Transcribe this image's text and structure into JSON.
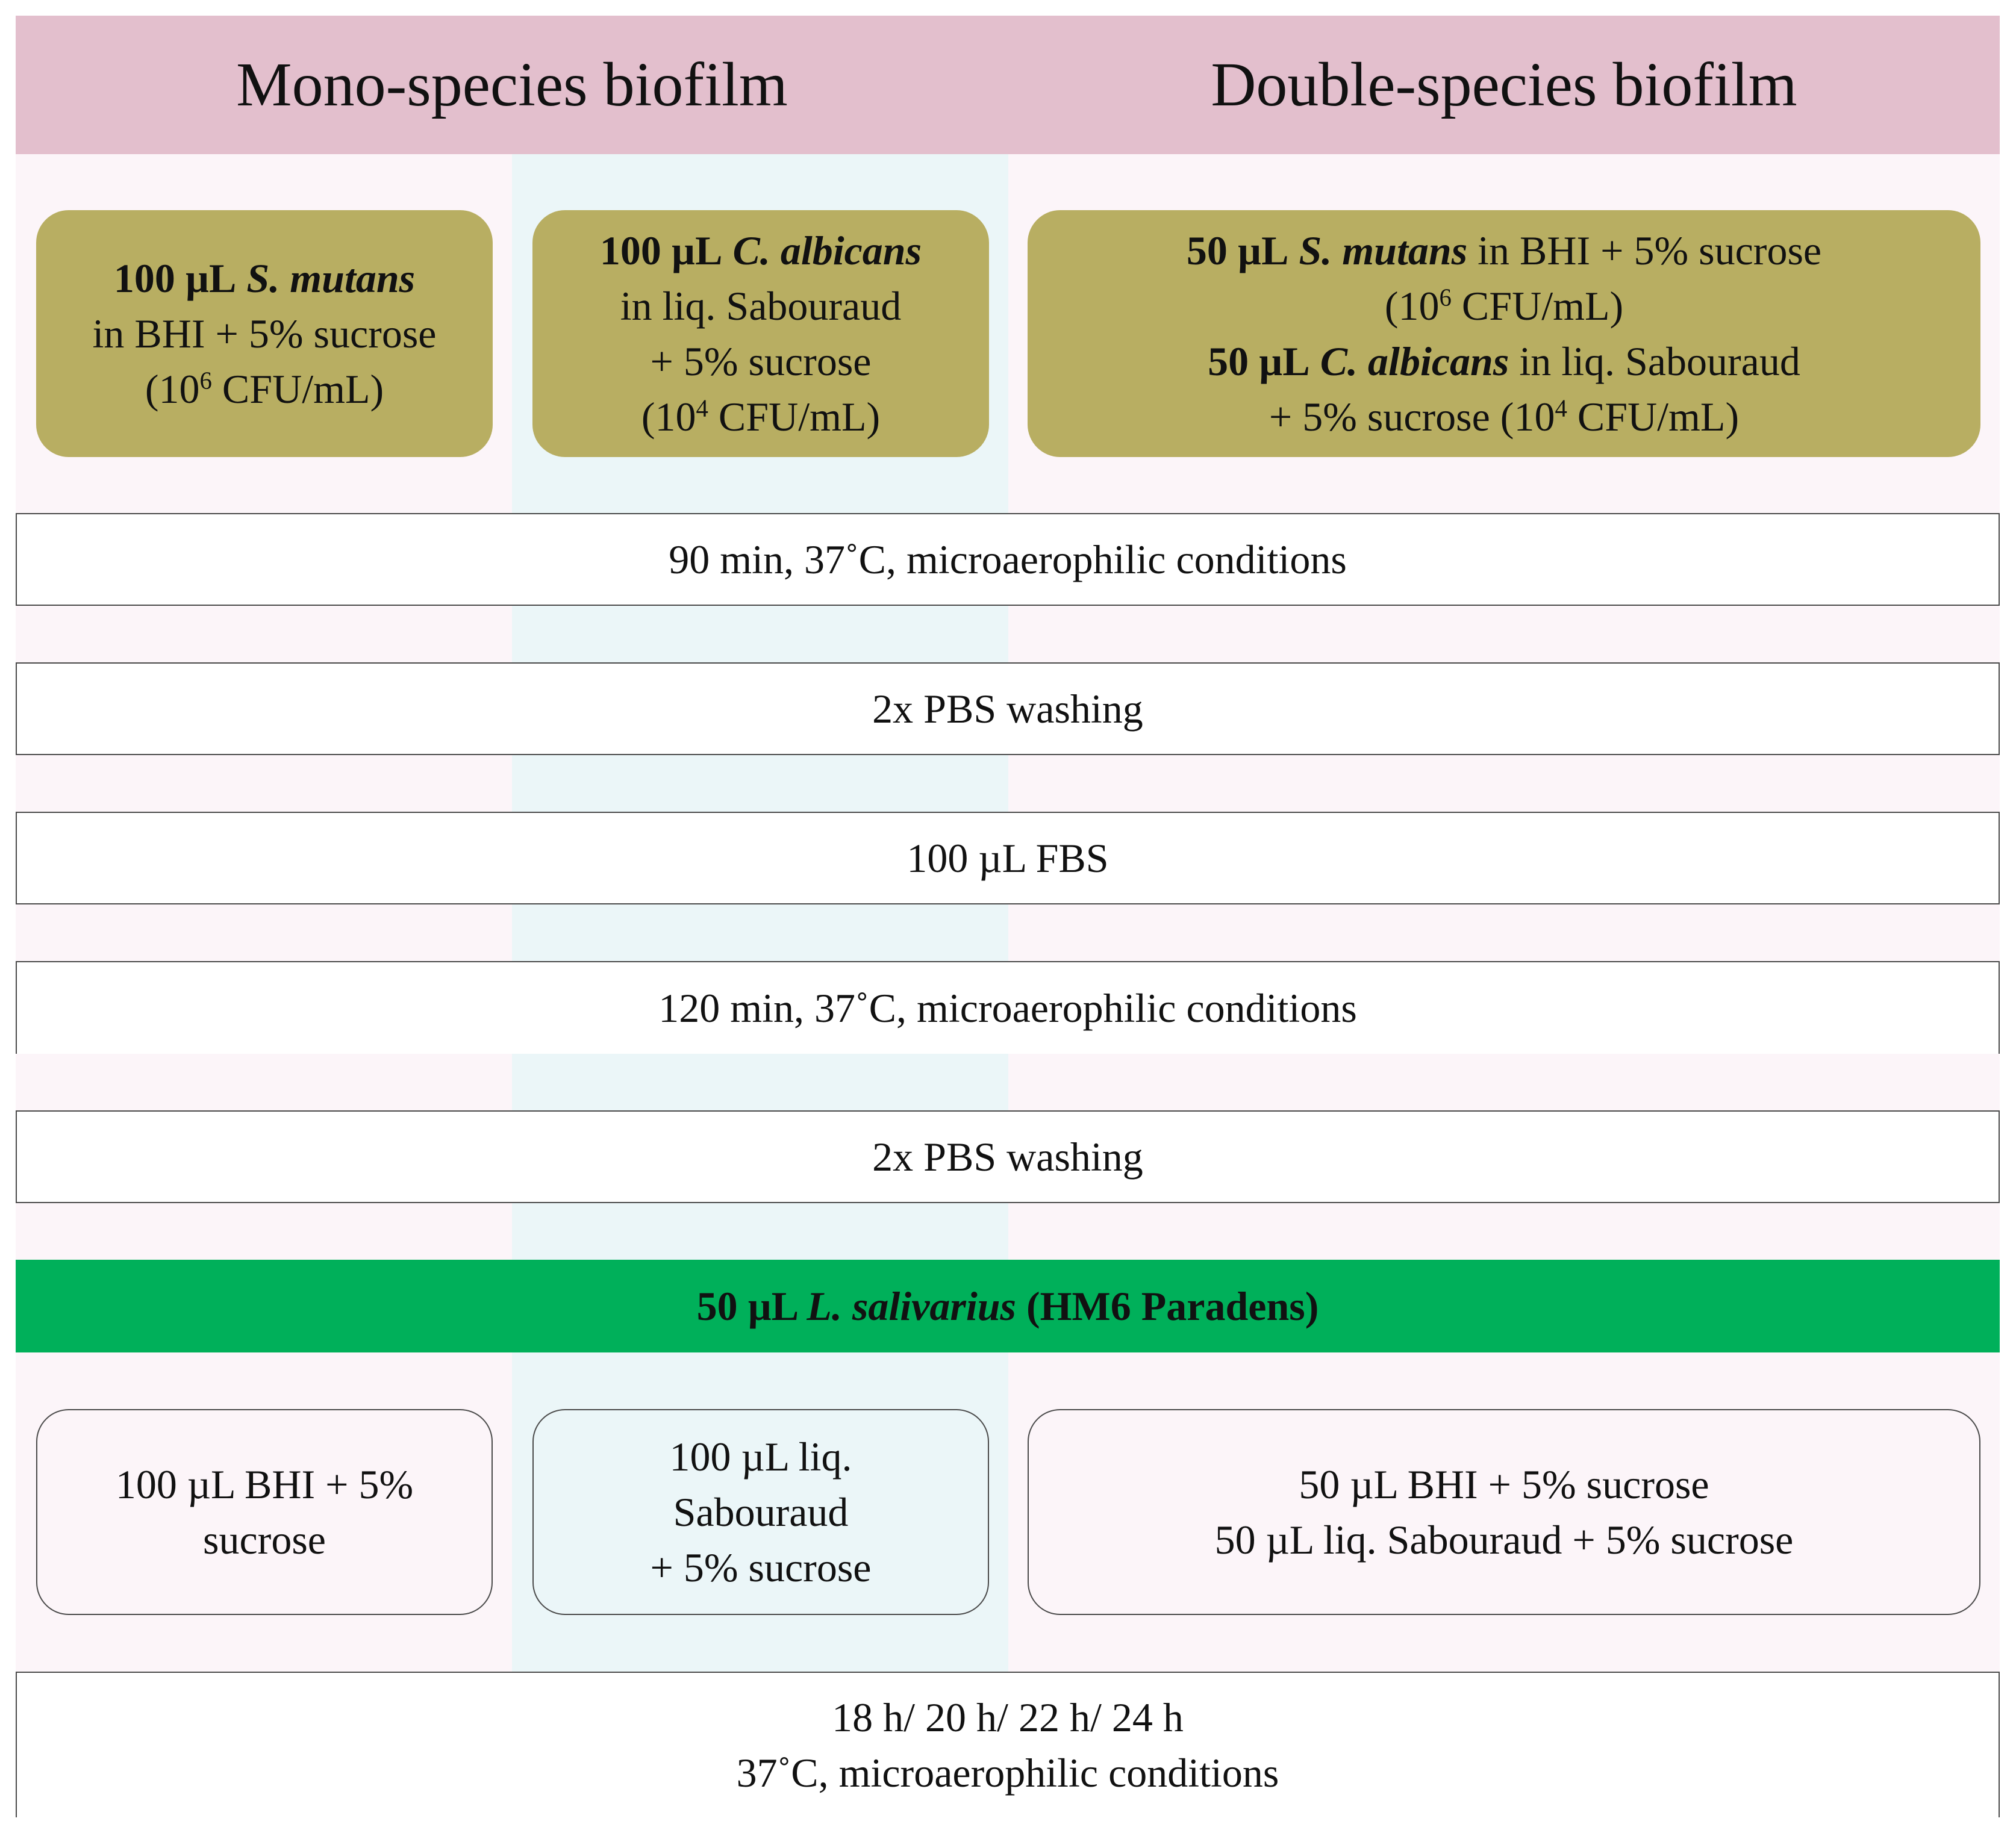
{
  "header": {
    "mono_title": "Mono-species biofilm",
    "double_title": "Double-species biofilm"
  },
  "inoculum": {
    "s_mutans": {
      "amount": "100 µL",
      "species": "S. mutans",
      "medium": "in BHI + 5% sucrose",
      "conc_prefix": "(10",
      "conc_exp": "6",
      "conc_suffix": " CFU/mL)"
    },
    "c_albicans": {
      "amount": "100 µL",
      "species": "C. albicans",
      "medium_line1": "in liq. Sabouraud",
      "medium_line2": "+ 5% sucrose",
      "conc_prefix": "(10",
      "conc_exp": "4",
      "conc_suffix": " CFU/mL)"
    },
    "double": {
      "sm_amount": "50 µL",
      "sm_species": "S. mutans",
      "sm_medium": " in BHI + 5% sucrose",
      "sm_conc_prefix": "(10",
      "sm_conc_exp": "6",
      "sm_conc_suffix": " CFU/mL)",
      "ca_amount": "50 µL",
      "ca_species": "C. albicans",
      "ca_medium": " in liq. Sabouraud",
      "ca_conc_prefix": "+ 5% sucrose (10",
      "ca_conc_exp": "4",
      "ca_conc_suffix": " CFU/mL)"
    }
  },
  "steps": {
    "incubation_1": "90 min, 37˚C, microaerophilic conditions",
    "wash_1": "2x PBS washing",
    "fbs": "100 µL FBS",
    "incubation_2": "120 min, 37˚C, microaerophilic conditions",
    "wash_2": "2x PBS washing"
  },
  "probiotic": {
    "amount": "50 µL",
    "species": "L. salivarius",
    "strain": "(HM6 Paradens)"
  },
  "media": {
    "mono_sm_line1": "100 µL BHI + 5%",
    "mono_sm_line2": "sucrose",
    "mono_ca_line1": "100 µL liq.",
    "mono_ca_line2": "Sabouraud",
    "mono_ca_line3": "+ 5% sucrose",
    "double_line1": "50 µL BHI + 5% sucrose",
    "double_line2": "50 µL liq. Sabouraud + 5% sucrose"
  },
  "final_incubation": {
    "line1": "18 h/ 20 h/ 22 h/ 24 h",
    "line2": "37˚C, microaerophilic conditions"
  },
  "colors": {
    "header": "#e3bfcd",
    "panel": "#fcf5f9",
    "middle_band": "#ebf6f8",
    "inoculum_box": "#b8ae62",
    "probiotic_bar": "#00b05a"
  }
}
